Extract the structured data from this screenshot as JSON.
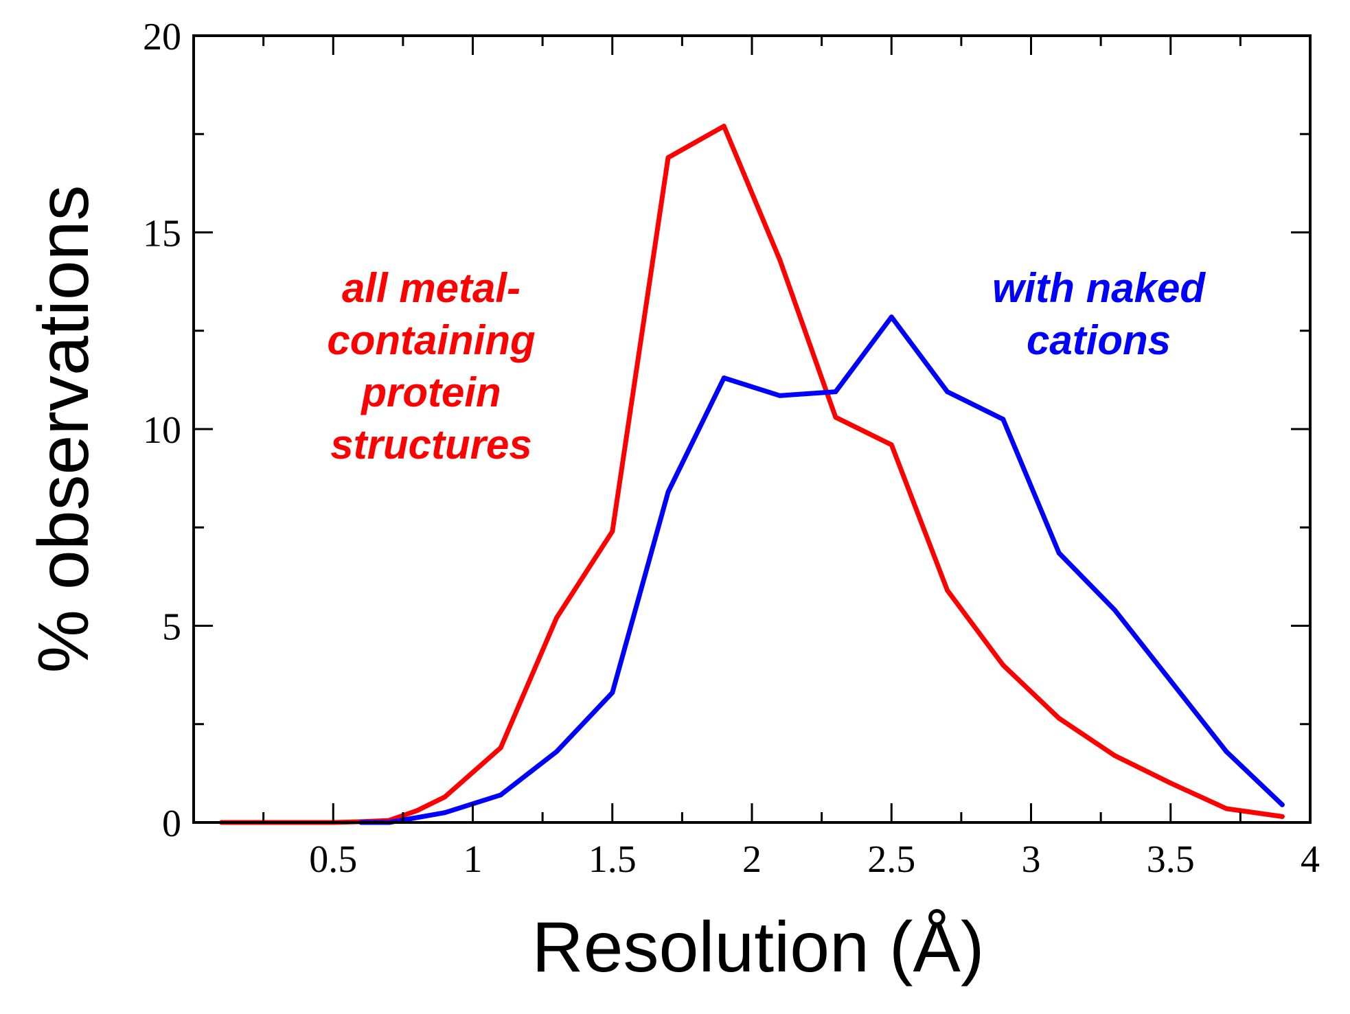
{
  "chart_data": {
    "type": "line",
    "title": "",
    "xlabel": "Resolution (Å)",
    "ylabel": "% observations",
    "xlim": [
      0,
      4
    ],
    "ylim": [
      0,
      20
    ],
    "xticks": [
      0.5,
      1,
      1.5,
      2,
      2.5,
      3,
      3.5,
      4
    ],
    "xtick_labels": [
      "0.5",
      "1",
      "1.5",
      "2",
      "2.5",
      "3",
      "3.5",
      "4"
    ],
    "yticks": [
      0,
      5,
      10,
      15,
      20
    ],
    "ytick_labels": [
      "0",
      "5",
      "10",
      "15",
      "20"
    ],
    "grid": false,
    "series": [
      {
        "name": "all metal-containing protein structures",
        "color": "#ff0000",
        "x": [
          0.1,
          0.3,
          0.5,
          0.6,
          0.7,
          0.8,
          0.9,
          1.1,
          1.3,
          1.5,
          1.7,
          1.9,
          2.1,
          2.3,
          2.5,
          2.7,
          2.9,
          3.1,
          3.3,
          3.5,
          3.7,
          3.9
        ],
        "y": [
          0,
          0,
          0,
          0.02,
          0.05,
          0.3,
          0.65,
          1.9,
          5.2,
          7.4,
          16.9,
          17.7,
          14.3,
          10.3,
          9.6,
          5.9,
          4.0,
          2.65,
          1.7,
          1.0,
          0.35,
          0.15
        ]
      },
      {
        "name": "with naked cations",
        "color": "#0000ff",
        "x": [
          0.6,
          0.7,
          0.9,
          1.1,
          1.3,
          1.5,
          1.7,
          1.9,
          2.1,
          2.3,
          2.5,
          2.7,
          2.9,
          3.1,
          3.3,
          3.5,
          3.7,
          3.9
        ],
        "y": [
          0,
          0,
          0.25,
          0.7,
          1.8,
          3.3,
          8.4,
          11.3,
          10.85,
          10.95,
          12.85,
          10.95,
          10.25,
          6.85,
          5.4,
          3.6,
          1.8,
          0.45
        ]
      }
    ],
    "annotations": [
      {
        "series": 0,
        "color": "#ff0000",
        "lines": [
          "all metal-",
          "containing",
          "protein",
          "structures"
        ]
      },
      {
        "series": 1,
        "color": "#0000ff",
        "lines": [
          "with naked",
          "cations"
        ]
      }
    ]
  }
}
